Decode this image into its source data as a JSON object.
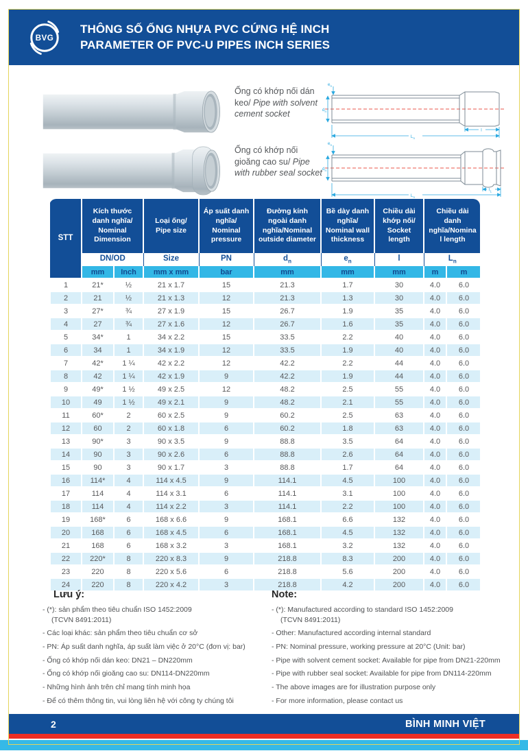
{
  "header": {
    "logo_text": "BVG",
    "title_vi": "THÔNG SỐ ỐNG NHỰA PVC CỨNG HỆ INCH",
    "title_en": "PARAMETER OF PVC-U PIPES INCH SERIES"
  },
  "figures": [
    {
      "caption_vi": "Ống có khớp nối dán keo/",
      "caption_en": "Pipe with solvent cement socket"
    },
    {
      "caption_vi": "Ống có khớp nối gioăng cao su/",
      "caption_en": "Pipe with rubber seal socket"
    }
  ],
  "drawings": {
    "solvent": {
      "label_e_base": "e",
      "label_e_sub": "n",
      "label_d_base": "d",
      "label_d_sub": "n",
      "label_L_base": "L",
      "label_L_sub": "n",
      "label_socket_base": "l",
      "label_socket_sub": ""
    },
    "rubber": {
      "label_e_base": "e",
      "label_e_sub": "n",
      "label_d_base": "d",
      "label_d_sub": "n",
      "label_L_base": "L",
      "label_L_sub": "n",
      "label_socket_base": "l",
      "label_socket_sub": "1"
    }
  },
  "table": {
    "stt_header": "STT",
    "groups": [
      {
        "label": "Kích thước danh nghĩa/ Nominal Dimension",
        "sub_base": "DN/OD",
        "sub_sub": ""
      },
      {
        "label": "Loại ống/ Pipe size",
        "sub_base": "Size",
        "sub_sub": ""
      },
      {
        "label": "Áp suất danh nghĩa/ Nominal pressure",
        "sub_base": "PN",
        "sub_sub": ""
      },
      {
        "label": "Đường kính ngoài danh nghĩa/Nominal outside diameter",
        "sub_base": "d",
        "sub_sub": "n"
      },
      {
        "label": "Bề dày danh nghĩa/ Nominal wall thickness",
        "sub_base": "e",
        "sub_sub": "n"
      },
      {
        "label": "Chiều dài khớp nối/ Socket length",
        "sub_base": "l",
        "sub_sub": ""
      },
      {
        "label": "Chiều dài danh nghĩa/Nominal length",
        "sub_base": "L",
        "sub_sub": "n"
      }
    ],
    "units": [
      "mm",
      "Inch",
      "mm x mm",
      "bar",
      "mm",
      "mm",
      "mm",
      "m",
      "m"
    ],
    "rows": [
      [
        "1",
        "21*",
        "½",
        "21 x 1.7",
        "15",
        "21.3",
        "1.7",
        "30",
        "4.0",
        "6.0"
      ],
      [
        "2",
        "21",
        "½",
        "21 x 1.3",
        "12",
        "21.3",
        "1.3",
        "30",
        "4.0",
        "6.0"
      ],
      [
        "3",
        "27*",
        "¾",
        "27 x 1.9",
        "15",
        "26.7",
        "1.9",
        "35",
        "4.0",
        "6.0"
      ],
      [
        "4",
        "27",
        "¾",
        "27 x 1.6",
        "12",
        "26.7",
        "1.6",
        "35",
        "4.0",
        "6.0"
      ],
      [
        "5",
        "34*",
        "1",
        "34 x 2.2",
        "15",
        "33.5",
        "2.2",
        "40",
        "4.0",
        "6.0"
      ],
      [
        "6",
        "34",
        "1",
        "34 x 1.9",
        "12",
        "33.5",
        "1.9",
        "40",
        "4.0",
        "6.0"
      ],
      [
        "7",
        "42*",
        "1 ¼",
        "42 x 2.2",
        "12",
        "42.2",
        "2.2",
        "44",
        "4.0",
        "6.0"
      ],
      [
        "8",
        "42",
        "1 ¼",
        "42 x 1.9",
        "9",
        "42.2",
        "1.9",
        "44",
        "4.0",
        "6.0"
      ],
      [
        "9",
        "49*",
        "1 ½",
        "49 x 2.5",
        "12",
        "48.2",
        "2.5",
        "55",
        "4.0",
        "6.0"
      ],
      [
        "10",
        "49",
        "1 ½",
        "49 x 2.1",
        "9",
        "48.2",
        "2.1",
        "55",
        "4.0",
        "6.0"
      ],
      [
        "11",
        "60*",
        "2",
        "60 x 2.5",
        "9",
        "60.2",
        "2.5",
        "63",
        "4.0",
        "6.0"
      ],
      [
        "12",
        "60",
        "2",
        "60 x 1.8",
        "6",
        "60.2",
        "1.8",
        "63",
        "4.0",
        "6.0"
      ],
      [
        "13",
        "90*",
        "3",
        "90 x 3.5",
        "9",
        "88.8",
        "3.5",
        "64",
        "4.0",
        "6.0"
      ],
      [
        "14",
        "90",
        "3",
        "90 x 2.6",
        "6",
        "88.8",
        "2.6",
        "64",
        "4.0",
        "6.0"
      ],
      [
        "15",
        "90",
        "3",
        "90 x 1.7",
        "3",
        "88.8",
        "1.7",
        "64",
        "4.0",
        "6.0"
      ],
      [
        "16",
        "114*",
        "4",
        "114 x 4.5",
        "9",
        "114.1",
        "4.5",
        "100",
        "4.0",
        "6.0"
      ],
      [
        "17",
        "114",
        "4",
        "114 x 3.1",
        "6",
        "114.1",
        "3.1",
        "100",
        "4.0",
        "6.0"
      ],
      [
        "18",
        "114",
        "4",
        "114 x 2.2",
        "3",
        "114.1",
        "2.2",
        "100",
        "4.0",
        "6.0"
      ],
      [
        "19",
        "168*",
        "6",
        "168 x 6.6",
        "9",
        "168.1",
        "6.6",
        "132",
        "4.0",
        "6.0"
      ],
      [
        "20",
        "168",
        "6",
        "168 x 4.5",
        "6",
        "168.1",
        "4.5",
        "132",
        "4.0",
        "6.0"
      ],
      [
        "21",
        "168",
        "6",
        "168 x 3.2",
        "3",
        "168.1",
        "3.2",
        "132",
        "4.0",
        "6.0"
      ],
      [
        "22",
        "220*",
        "8",
        "220 x 8.3",
        "9",
        "218.8",
        "8.3",
        "200",
        "4.0",
        "6.0"
      ],
      [
        "23",
        "220",
        "8",
        "220 x 5.6",
        "6",
        "218.8",
        "5.6",
        "200",
        "4.0",
        "6.0"
      ],
      [
        "24",
        "220",
        "8",
        "220 x 4.2",
        "3",
        "218.8",
        "4.2",
        "200",
        "4.0",
        "6.0"
      ]
    ]
  },
  "notes_vi": {
    "title": "Lưu ý:",
    "items": [
      {
        "text": "(*): sản phẩm theo tiêu chuẩn ISO 1452:2009",
        "cont": "(TCVN 8491:2011)"
      },
      {
        "text": "Các loại khác: sản phẩm theo tiêu chuẩn cơ sở"
      },
      {
        "text": "PN: Áp suất danh nghĩa, áp suất làm việc ở 20°C (đơn vị: bar)"
      },
      {
        "text": "Ống có khớp nối dán keo: DN21 – DN220mm"
      },
      {
        "text": "Ống có khớp nối gioăng cao su: DN114-DN220mm"
      },
      {
        "text": "Những hình ảnh trên chỉ mang tính minh họa"
      },
      {
        "text": "Để có thêm thông tin, vui lòng liên hệ với công ty chúng tôi"
      }
    ]
  },
  "notes_en": {
    "title": "Note:",
    "items": [
      {
        "text": "(*): Manufactured according to standard ISO 1452:2009",
        "cont": "(TCVN 8491:2011)"
      },
      {
        "text": "Other: Manufactured according internal standard"
      },
      {
        "text": "PN: Nominal pressure, working pressure at 20°C (Unit: bar)"
      },
      {
        "text": "Pipe with solvent cement socket: Available for pipe from DN21-220mm"
      },
      {
        "text": "Pipe with rubber seal socket: Available for pipe from DN114-220mm"
      },
      {
        "text": "The above images are for illustration purpose only"
      },
      {
        "text": "For more information, please contact us"
      }
    ]
  },
  "footer": {
    "page_number": "2",
    "brand": "BÌNH MINH VIỆT"
  },
  "colors": {
    "navy": "#124E97",
    "cyan": "#33B7E6",
    "row_stripe": "#D9EFF9",
    "red": "#EE2E24",
    "yellow_border": "#E4D45A",
    "text": "#57585A"
  }
}
